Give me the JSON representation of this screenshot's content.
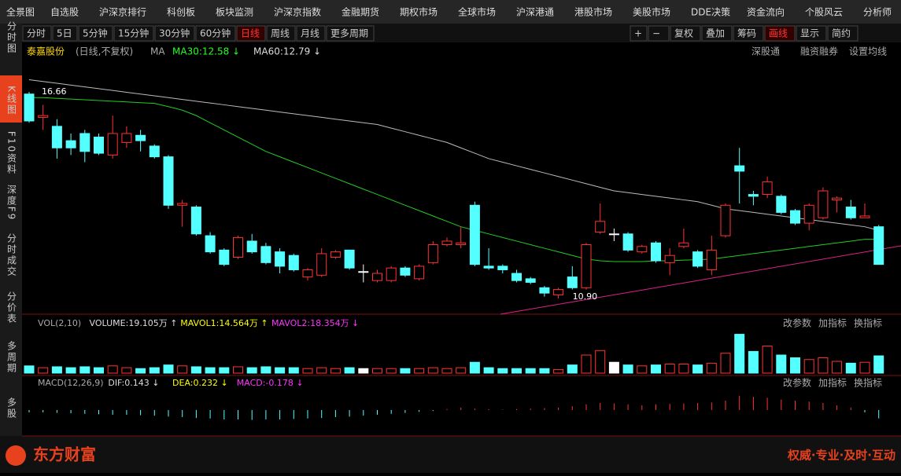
{
  "menu": [
    "全景图",
    "自选股",
    "沪深京排行",
    "科创板",
    "板块监测",
    "沪深京指数",
    "金融期货",
    "期权市场",
    "全球市场",
    "沪深港通",
    "港股市场",
    "美股市场",
    "DDE决策",
    "资金流向",
    "个股风云",
    "分析师"
  ],
  "periods": [
    "分时",
    "5日",
    "5分钟",
    "15分钟",
    "30分钟",
    "60分钟",
    "日线",
    "周线",
    "月线",
    "更多周期"
  ],
  "tools": [
    "+",
    "−",
    "复权",
    "叠加",
    "筹码",
    "画线",
    "显示",
    "简约"
  ],
  "sidebar": [
    "分时图",
    "K线图",
    "F10资料",
    "深度F9",
    "分时成交",
    "分价表",
    "多周期",
    "多股"
  ],
  "stock": {
    "name": "泰嘉股份",
    "period": "(日线,不复权)",
    "ma": "MA",
    "ma30": "MA30:12.58 ↓",
    "ma60": "MA60:12.79 ↓",
    "links": [
      "深股通",
      "融资融券",
      "设置均线"
    ]
  },
  "vol_header": {
    "name": "VOL(2,10)",
    "volume": "VOLUME:19.105万 ↑",
    "mavol1": "MAVOL1:14.564万 ↑",
    "mavol2": "MAVOL2:18.354万 ↓",
    "actions": [
      "改参数",
      "加指标",
      "换指标"
    ]
  },
  "macd_header": {
    "name": "MACD(12,26,9)",
    "dif": "DIF:0.143 ↓",
    "dea": "DEA:0.232 ↓",
    "macd": "MACD:-0.178 ↓",
    "actions": [
      "改参数",
      "加指标",
      "换指标"
    ]
  },
  "footer": {
    "brand": "东方财富",
    "slogan": "权威·专业·及时·互动"
  },
  "kline": {
    "high": 16.66,
    "low": {
      "value": 10.9,
      "label": "10.90"
    },
    "open": [
      16.6,
      15.95,
      15.7,
      15.3,
      15.5,
      15.4,
      14.9,
      15.25,
      15.45,
      15.15,
      14.85,
      13.5,
      13.45,
      12.65,
      12.25,
      12.05,
      12.5,
      12.35,
      12.2,
      12.1,
      11.5,
      11.55,
      12.05,
      12.25,
      11.65,
      11.4,
      11.4,
      11.75,
      11.45,
      11.9,
      12.4,
      12.4,
      13.5,
      11.8,
      11.8,
      11.6,
      11.45,
      11.2,
      11.0,
      11.5,
      11.2,
      12.75,
      12.7,
      12.7,
      12.2,
      12.45,
      11.9,
      12.35,
      12.2,
      11.7,
      12.65,
      14.6,
      13.8,
      13.8,
      13.75,
      13.35,
      13.0,
      13.15,
      13.65,
      13.45,
      13.15,
      12.9
    ],
    "close": [
      15.85,
      16.0,
      15.1,
      15.1,
      15.0,
      14.95,
      15.5,
      15.5,
      15.3,
      14.85,
      13.5,
      13.55,
      12.7,
      12.2,
      11.85,
      12.6,
      12.2,
      11.9,
      11.8,
      11.7,
      11.7,
      12.15,
      12.2,
      11.75,
      11.65,
      11.6,
      11.75,
      11.55,
      11.8,
      12.4,
      12.5,
      12.45,
      11.85,
      11.75,
      11.7,
      11.4,
      11.35,
      11.05,
      11.15,
      11.2,
      12.4,
      13.05,
      12.7,
      12.25,
      12.35,
      11.95,
      12.1,
      12.45,
      11.8,
      12.25,
      13.5,
      14.45,
      13.75,
      14.15,
      13.3,
      13.0,
      13.5,
      13.9,
      13.7,
      13.15,
      13.2,
      11.85
    ],
    "highs": [
      16.66,
      16.3,
      15.9,
      15.5,
      15.6,
      15.5,
      16.0,
      15.7,
      15.6,
      15.2,
      14.9,
      13.65,
      13.5,
      12.75,
      12.3,
      12.65,
      12.7,
      12.45,
      12.3,
      12.15,
      11.75,
      12.3,
      12.25,
      12.25,
      11.85,
      11.7,
      11.8,
      11.8,
      11.85,
      12.5,
      12.6,
      12.9,
      13.6,
      12.3,
      11.85,
      11.7,
      11.5,
      11.25,
      11.2,
      11.8,
      12.45,
      13.55,
      12.85,
      12.75,
      12.4,
      12.5,
      12.3,
      12.85,
      12.25,
      12.65,
      13.55,
      15.1,
      13.9,
      14.3,
      13.8,
      13.4,
      13.55,
      14.0,
      13.75,
      13.65,
      13.55,
      12.95
    ],
    "lows": [
      15.8,
      15.6,
      14.8,
      14.9,
      14.7,
      14.9,
      14.8,
      15.1,
      15.0,
      14.8,
      13.4,
      12.9,
      12.65,
      12.15,
      11.8,
      12.0,
      12.15,
      11.85,
      11.6,
      11.65,
      11.4,
      11.5,
      12.0,
      11.7,
      11.35,
      11.35,
      11.35,
      11.5,
      11.4,
      11.85,
      12.35,
      12.3,
      11.8,
      11.7,
      11.6,
      11.35,
      11.3,
      10.95,
      10.9,
      11.15,
      11.15,
      12.7,
      12.5,
      12.2,
      12.15,
      11.9,
      11.55,
      12.3,
      11.75,
      11.55,
      12.6,
      13.55,
      13.5,
      13.7,
      13.25,
      12.95,
      12.8,
      13.1,
      13.3,
      13.1,
      13.15,
      11.85
    ],
    "ma30": [
      16.5,
      16.5,
      16.48,
      16.46,
      16.44,
      16.42,
      16.4,
      16.38,
      16.36,
      16.34,
      16.25,
      16.15,
      16.0,
      15.8,
      15.6,
      15.4,
      15.2,
      15.0,
      14.85,
      14.7,
      14.55,
      14.4,
      14.25,
      14.1,
      13.95,
      13.8,
      13.65,
      13.5,
      13.35,
      13.2,
      13.05,
      12.9,
      12.8,
      12.7,
      12.6,
      12.5,
      12.4,
      12.3,
      12.2,
      12.1,
      12.0,
      11.95,
      11.93,
      11.93,
      11.93,
      11.95,
      11.95,
      11.97,
      11.98,
      12.0,
      12.05,
      12.1,
      12.15,
      12.2,
      12.25,
      12.3,
      12.35,
      12.4,
      12.45,
      12.5,
      12.55,
      12.55
    ],
    "ma60": [
      17.0,
      16.95,
      16.9,
      16.85,
      16.8,
      16.75,
      16.7,
      16.65,
      16.6,
      16.55,
      16.5,
      16.45,
      16.4,
      16.35,
      16.3,
      16.25,
      16.2,
      16.15,
      16.1,
      16.05,
      16.0,
      15.95,
      15.9,
      15.85,
      15.8,
      15.75,
      15.65,
      15.55,
      15.45,
      15.35,
      15.25,
      15.1,
      14.95,
      14.8,
      14.7,
      14.6,
      14.5,
      14.4,
      14.3,
      14.2,
      14.1,
      14.0,
      13.9,
      13.85,
      13.8,
      13.75,
      13.7,
      13.65,
      13.6,
      13.5,
      13.4,
      13.35,
      13.3,
      13.25,
      13.2,
      13.15,
      13.1,
      13.05,
      13.0,
      12.95,
      12.9,
      12.8
    ],
    "volume": [
      8,
      6,
      7,
      6,
      7,
      6,
      8,
      6,
      5,
      6,
      9,
      8,
      7,
      6,
      6,
      7,
      6,
      7,
      6,
      6,
      5,
      6,
      5,
      6,
      5,
      5,
      5,
      5,
      5,
      6,
      5,
      6,
      12,
      6,
      5,
      5,
      5,
      5,
      4,
      9,
      20,
      25,
      12,
      9,
      8,
      9,
      10,
      10,
      9,
      11,
      22,
      43,
      24,
      30,
      20,
      17,
      15,
      17,
      13,
      11,
      12,
      19.105
    ],
    "macd": [
      -0.05,
      -0.05,
      -0.06,
      -0.07,
      -0.08,
      -0.09,
      -0.1,
      -0.1,
      -0.11,
      -0.12,
      -0.14,
      -0.15,
      -0.17,
      -0.18,
      -0.2,
      -0.2,
      -0.21,
      -0.2,
      -0.2,
      -0.19,
      -0.18,
      -0.17,
      -0.15,
      -0.14,
      -0.12,
      -0.1,
      -0.08,
      -0.06,
      -0.04,
      -0.02,
      0.02,
      0.05,
      0.03,
      0.02,
      0.01,
      0.02,
      0.03,
      0.04,
      0.05,
      0.08,
      0.12,
      0.15,
      0.14,
      0.12,
      0.1,
      0.12,
      0.13,
      0.14,
      0.15,
      0.16,
      0.2,
      0.3,
      0.28,
      0.26,
      0.22,
      0.2,
      0.18,
      0.15,
      0.1,
      0.05,
      -0.05,
      -0.178
    ]
  }
}
